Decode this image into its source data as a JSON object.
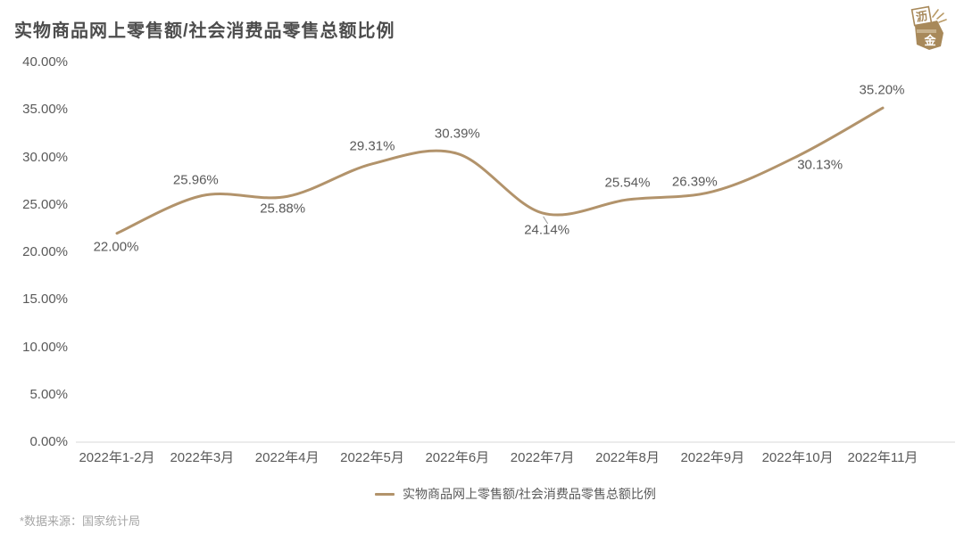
{
  "header": {
    "title": "实物商品网上零售额/社会消费品零售总额比例"
  },
  "brand": {
    "logo_char_top": "沥",
    "logo_char_bottom": "金",
    "logo_color": "#a8895a"
  },
  "chart_data": {
    "type": "line",
    "title": "实物商品网上零售额/社会消费品零售总额比例",
    "categories": [
      "2022年1-2月",
      "2022年3月",
      "2022年4月",
      "2022年5月",
      "2022年6月",
      "2022年7月",
      "2022年8月",
      "2022年9月",
      "2022年10月",
      "2022年11月"
    ],
    "series": [
      {
        "name": "实物商品网上零售额/社会消费品零售总额比例",
        "values": [
          22.0,
          25.96,
          25.88,
          29.31,
          30.39,
          24.14,
          25.54,
          26.39,
          30.13,
          35.2
        ]
      }
    ],
    "data_labels": [
      "22.00%",
      "25.96%",
      "25.88%",
      "29.31%",
      "30.39%",
      "24.14%",
      "25.54%",
      "26.39%",
      "30.13%",
      "35.20%"
    ],
    "ytick_labels": [
      "0.00%",
      "5.00%",
      "10.00%",
      "15.00%",
      "20.00%",
      "25.00%",
      "30.00%",
      "35.00%",
      "40.00%"
    ],
    "ytick_values": [
      0,
      5,
      10,
      15,
      20,
      25,
      30,
      35,
      40
    ],
    "ylim": [
      0,
      40
    ],
    "xlabel": "",
    "ylabel": "",
    "grid": false,
    "legend_position": "bottom",
    "line_color": "#b2936b",
    "axis_line_color": "#d9d9d9",
    "label_color": "#595959",
    "leader_line_color": "#9a9a9a"
  },
  "legend": {
    "label": "实物商品网上零售额/社会消费品零售总额比例"
  },
  "footer": {
    "note": "*数据来源：国家统计局"
  }
}
